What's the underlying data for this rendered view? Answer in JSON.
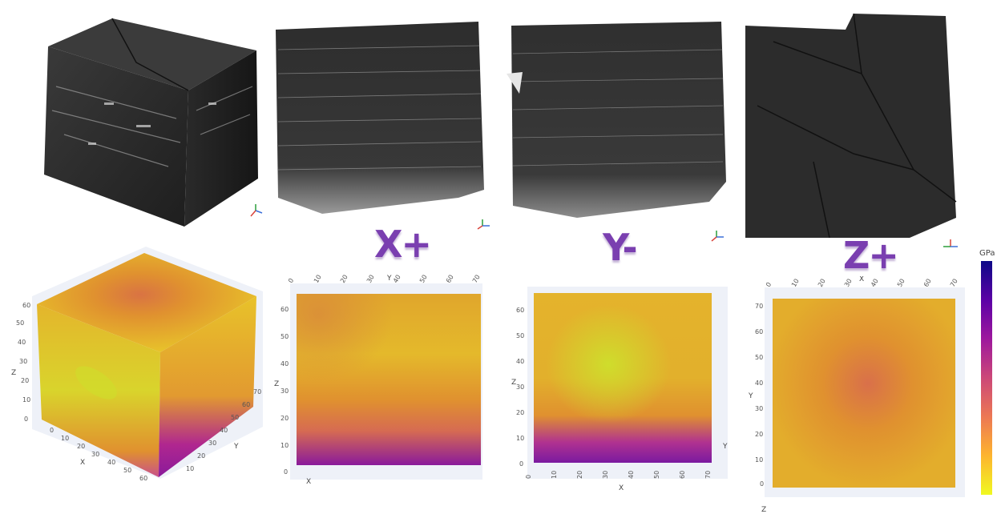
{
  "face_labels": [
    "X+",
    "Y-",
    "Z+"
  ],
  "colorbar": {
    "unit": "GPa",
    "colors": [
      "#f0f921",
      "#fdb32f",
      "#ed7953",
      "#cc4778",
      "#9c179e",
      "#5c01a6",
      "#0d0887"
    ]
  },
  "map_colors": {
    "yellow": "#e8d22a",
    "gold": "#e2ad2c",
    "orange": "#e0912f",
    "coral": "#d97343",
    "magenta": "#b0278f",
    "purple": "#8a1a9b",
    "lime": "#cfdd2c"
  },
  "axes": {
    "iso": {
      "x": "X",
      "y": "Y",
      "z": "Z",
      "x_ticks": [
        "0",
        "10",
        "20",
        "30",
        "40",
        "50",
        "60"
      ],
      "y_ticks": [
        "10",
        "20",
        "30",
        "40",
        "50",
        "60",
        "70"
      ],
      "z_ticks": [
        "0",
        "10",
        "20",
        "30",
        "40",
        "50",
        "60"
      ]
    },
    "xplus": {
      "top": "Y",
      "left": "Z",
      "bottom": "X",
      "top_ticks": [
        "0",
        "10",
        "20",
        "30",
        "40",
        "50",
        "60",
        "70"
      ],
      "left_ticks": [
        "0",
        "10",
        "20",
        "30",
        "40",
        "50",
        "60"
      ]
    },
    "yminus": {
      "bottom": "X",
      "left": "Z",
      "right": "Y",
      "bottom_ticks": [
        "0",
        "10",
        "20",
        "30",
        "40",
        "50",
        "60",
        "70"
      ],
      "left_ticks": [
        "0",
        "10",
        "20",
        "30",
        "40",
        "50",
        "60"
      ]
    },
    "zplus": {
      "top": "X",
      "left": "Y",
      "bottom": "Z",
      "top_ticks": [
        "0",
        "10",
        "20",
        "30",
        "40",
        "50",
        "60",
        "70"
      ],
      "left_ticks": [
        "0",
        "10",
        "20",
        "30",
        "40",
        "50",
        "60",
        "70"
      ]
    }
  }
}
